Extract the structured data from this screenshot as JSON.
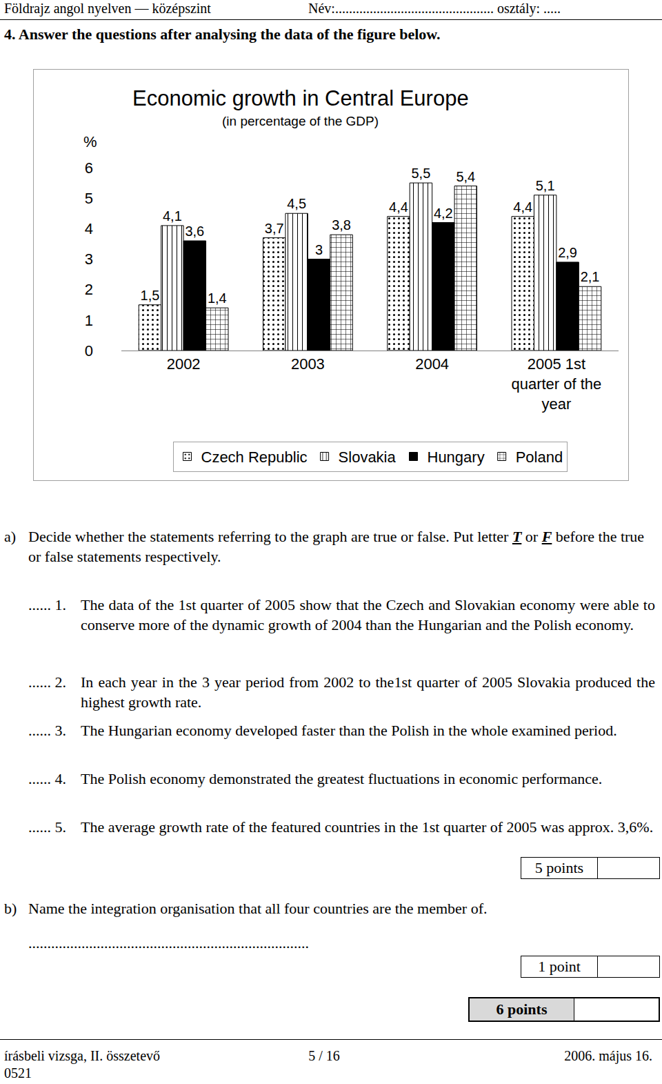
{
  "header": {
    "left": "Földrajz angol nyelven — középszint",
    "right": "Név:.............................................. osztály: ....."
  },
  "task": "4. Answer the questions after analysing the data of the figure below.",
  "chart_data": {
    "type": "bar",
    "title": "Economic growth in Central Europe",
    "subtitle": "(in percentage of the GDP)",
    "y_label": "%",
    "categories": [
      "2002",
      "2003",
      "2004",
      "2005 1st quarter of the year"
    ],
    "series": [
      {
        "name": "Czech Republic",
        "color": "#ffffff",
        "marker": "dots",
        "values": [
          1.5,
          3.7,
          4.4,
          4.4
        ],
        "value_labels": [
          "1,5",
          "3,7",
          "4,4",
          "4,4"
        ]
      },
      {
        "name": "Slovakia",
        "color": "#ffffff",
        "marker": "vertical_lines",
        "values": [
          4.1,
          4.5,
          5.5,
          5.1
        ],
        "value_labels": [
          "4,1",
          "4,5",
          "5,5",
          "5,1"
        ]
      },
      {
        "name": "Hungary",
        "color": "#000000",
        "marker": "solid",
        "values": [
          3.6,
          3,
          4.2,
          2.9
        ],
        "value_labels": [
          "3,6",
          "3",
          "4,2",
          "2,9"
        ]
      },
      {
        "name": "Poland",
        "color": "#ffffff",
        "marker": "grid",
        "values": [
          1.4,
          3.8,
          5.4,
          2.1
        ],
        "value_labels": [
          "1,4",
          "3,8",
          "5,4",
          "2,1"
        ]
      }
    ],
    "ylim": [
      0,
      6
    ],
    "yticks": [
      0,
      1,
      2,
      3,
      4,
      5,
      6
    ],
    "grid": false,
    "legend": "bottom",
    "data_labels": true
  },
  "part_a": {
    "letter": "a)",
    "instruction": [
      "Decide whether the statements referring to the graph are true or false. Put letter ",
      "T",
      " or ",
      "F",
      " before the true or false statements respectively."
    ],
    "blank": "......",
    "statements": [
      {
        "number": "1.",
        "text": "The data of the 1st quarter of 2005 show that the Czech and Slovakian economy were able to conserve more of the dynamic growth of 2004 than the Hungarian and the Polish economy."
      },
      {
        "number": "2.",
        "text": "In each year in the 3 year period from 2002 to the1st quarter of 2005 Slovakia produced the highest growth rate."
      },
      {
        "number": "3.",
        "text": "The Hungarian economy developed faster than the Polish in the whole examined period."
      },
      {
        "number": "4.",
        "text": "The Polish economy demonstrated the greatest fluctuations in economic performance."
      },
      {
        "number": "5.",
        "text": "The average growth rate of the featured countries in the 1st quarter of 2005 was approx. 3,6%."
      }
    ],
    "points": "5 points"
  },
  "part_b": {
    "letter": "b)",
    "question": "Name the integration organisation that all four countries are the member of.",
    "answer_line": "..........................................................................",
    "points": "1 point"
  },
  "total_points": "6 points",
  "footer": {
    "left": "írásbeli vizsga, II. összetevő",
    "center": "5 / 16",
    "right": "2006. május 16.",
    "code": "0521"
  }
}
